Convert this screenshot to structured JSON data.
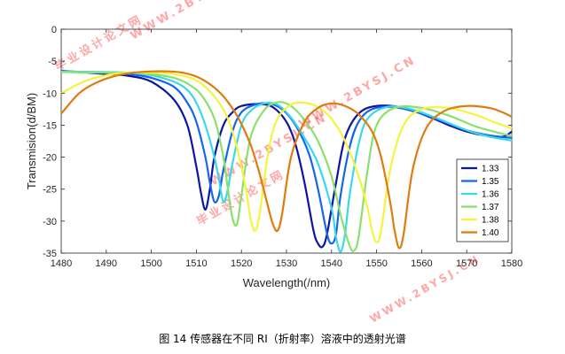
{
  "caption": "图 14 传感器在不同 RI（折射率）溶液中的透射光谱",
  "watermarks": [
    {
      "id": "wm1",
      "text": "毕业设计论文网"
    },
    {
      "id": "wm2",
      "text": "WWW.2BYSJ.CN"
    },
    {
      "id": "wm3",
      "text": "WWW.2BYSJ.CN"
    },
    {
      "id": "wm4",
      "text": "毕业设计论文网"
    },
    {
      "id": "wm5",
      "text": "WWW.2BYSJ.CN"
    },
    {
      "id": "wm6",
      "text": "WWW.2BYSJ.CN"
    }
  ],
  "chart_data": {
    "type": "line",
    "title": "",
    "xlabel": "Wavelength(/nm)",
    "ylabel": "Transmision(d/BM)",
    "xlim": [
      1480,
      1580
    ],
    "ylim": [
      -35,
      0
    ],
    "xticks": [
      1480,
      1490,
      1500,
      1510,
      1520,
      1530,
      1540,
      1550,
      1560,
      1570,
      1580
    ],
    "yticks": [
      0,
      -5,
      -10,
      -15,
      -20,
      -25,
      -30,
      -35
    ],
    "grid": false,
    "legend_position": "lower-right",
    "series": [
      {
        "name": "1.33",
        "color": "#0b17a3",
        "x": [
          1480,
          1490,
          1495,
          1500,
          1505,
          1508,
          1510,
          1511,
          1512,
          1513,
          1514,
          1516,
          1518,
          1520,
          1524,
          1527,
          1530,
          1532,
          1534,
          1536,
          1537,
          1538,
          1539,
          1541,
          1543,
          1546,
          1550,
          1556,
          1562,
          1566,
          1570,
          1574,
          1578,
          1580
        ],
        "y": [
          -6.5,
          -7.0,
          -7.3,
          -8.2,
          -11.0,
          -15.0,
          -21.5,
          -25.5,
          -28.2,
          -25.0,
          -20.0,
          -15.0,
          -13.0,
          -12.0,
          -11.7,
          -12.2,
          -14.5,
          -18.0,
          -24.0,
          -31.5,
          -33.5,
          -34.0,
          -32.0,
          -24.0,
          -17.0,
          -13.2,
          -12.0,
          -12.3,
          -13.8,
          -15.0,
          -16.0,
          -16.6,
          -16.8,
          -16.0
        ]
      },
      {
        "name": "1.35",
        "color": "#1565ee",
        "x": [
          1480,
          1490,
          1495,
          1500,
          1505,
          1508,
          1510,
          1512,
          1513,
          1514,
          1515,
          1516,
          1518,
          1520,
          1523,
          1526,
          1529,
          1532,
          1535,
          1537,
          1539,
          1540,
          1541,
          1542,
          1544,
          1546,
          1549,
          1554,
          1560,
          1565,
          1570,
          1575,
          1580
        ],
        "y": [
          -6.6,
          -6.8,
          -7.0,
          -7.6,
          -9.0,
          -11.5,
          -14.5,
          -20.0,
          -24.0,
          -27.0,
          -26.0,
          -22.0,
          -16.0,
          -13.0,
          -11.8,
          -11.6,
          -12.5,
          -15.0,
          -19.5,
          -25.0,
          -32.0,
          -33.5,
          -32.0,
          -26.0,
          -18.5,
          -14.5,
          -12.5,
          -12.2,
          -13.2,
          -14.5,
          -15.8,
          -16.6,
          -17.0
        ]
      },
      {
        "name": "1.36",
        "color": "#3ad9ea",
        "x": [
          1480,
          1490,
          1495,
          1500,
          1505,
          1508,
          1510,
          1512,
          1514,
          1515,
          1516,
          1517,
          1518,
          1520,
          1522,
          1525,
          1528,
          1531,
          1534,
          1537,
          1540,
          1541,
          1542,
          1543,
          1544,
          1546,
          1548,
          1552,
          1557,
          1563,
          1570,
          1575,
          1580
        ],
        "y": [
          -6.6,
          -6.7,
          -6.8,
          -7.2,
          -8.2,
          -9.5,
          -11.5,
          -15.0,
          -20.0,
          -23.5,
          -27.0,
          -25.0,
          -21.0,
          -15.0,
          -12.8,
          -11.6,
          -11.8,
          -13.8,
          -17.0,
          -21.0,
          -28.0,
          -32.5,
          -34.8,
          -32.0,
          -26.0,
          -18.0,
          -14.0,
          -12.2,
          -12.4,
          -13.8,
          -15.8,
          -16.8,
          -17.4
        ]
      },
      {
        "name": "1.37",
        "color": "#8ae06c",
        "x": [
          1480,
          1490,
          1495,
          1500,
          1505,
          1508,
          1511,
          1514,
          1516,
          1517,
          1518,
          1519,
          1520,
          1522,
          1525,
          1528,
          1531,
          1534,
          1537,
          1540,
          1542,
          1544,
          1545,
          1546,
          1548,
          1550,
          1554,
          1560,
          1566,
          1572,
          1576,
          1580
        ],
        "y": [
          -6.7,
          -6.8,
          -6.8,
          -7.0,
          -7.6,
          -8.5,
          -10.2,
          -14.0,
          -20.0,
          -25.0,
          -29.5,
          -30.5,
          -26.0,
          -17.0,
          -12.7,
          -11.4,
          -12.0,
          -14.2,
          -17.5,
          -23.0,
          -29.0,
          -33.8,
          -34.6,
          -32.5,
          -22.0,
          -15.0,
          -12.3,
          -12.3,
          -13.5,
          -15.2,
          -16.0,
          -16.7
        ]
      },
      {
        "name": "1.38",
        "color": "#f4f43c",
        "x": [
          1480,
          1485,
          1490,
          1495,
          1500,
          1505,
          1510,
          1514,
          1517,
          1519,
          1521,
          1522,
          1523,
          1524,
          1526,
          1528,
          1531,
          1534,
          1537,
          1540,
          1543,
          1546,
          1548,
          1549,
          1550,
          1551,
          1553,
          1556,
          1560,
          1566,
          1572,
          1576,
          1580
        ],
        "y": [
          -10.0,
          -8.2,
          -7.2,
          -6.8,
          -6.8,
          -7.0,
          -8.0,
          -10.5,
          -14.0,
          -18.5,
          -25.0,
          -29.5,
          -31.5,
          -29.0,
          -19.0,
          -14.0,
          -11.8,
          -11.5,
          -12.2,
          -14.0,
          -17.5,
          -23.0,
          -28.0,
          -31.5,
          -33.3,
          -31.5,
          -22.0,
          -15.0,
          -12.5,
          -12.3,
          -13.4,
          -14.5,
          -15.5
        ]
      },
      {
        "name": "1.40",
        "color": "#e07b10",
        "x": [
          1480,
          1484,
          1488,
          1492,
          1496,
          1500,
          1504,
          1507,
          1510,
          1513,
          1516,
          1519,
          1522,
          1524,
          1526,
          1527,
          1528,
          1529,
          1531,
          1534,
          1537,
          1540,
          1543,
          1546,
          1549,
          1551,
          1553,
          1554,
          1555,
          1556,
          1558,
          1561,
          1565,
          1570,
          1575,
          1578,
          1580
        ],
        "y": [
          -13.2,
          -10.0,
          -8.3,
          -7.3,
          -6.8,
          -6.6,
          -6.6,
          -6.8,
          -7.4,
          -8.6,
          -10.5,
          -13.5,
          -18.0,
          -22.5,
          -28.0,
          -30.5,
          -31.5,
          -29.0,
          -20.0,
          -14.5,
          -12.3,
          -11.6,
          -12.0,
          -13.3,
          -16.0,
          -20.0,
          -27.0,
          -31.5,
          -34.2,
          -32.0,
          -22.0,
          -15.5,
          -12.8,
          -12.0,
          -12.3,
          -13.0,
          -13.7
        ]
      }
    ]
  }
}
